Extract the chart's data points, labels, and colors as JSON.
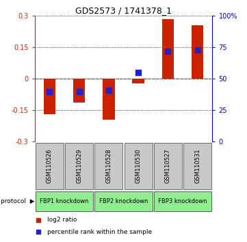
{
  "title": "GDS2573 / 1741378_1",
  "samples": [
    "GSM110526",
    "GSM110529",
    "GSM110528",
    "GSM110530",
    "GSM110527",
    "GSM110531"
  ],
  "log2_ratio": [
    -0.168,
    -0.115,
    -0.195,
    -0.022,
    0.285,
    0.255
  ],
  "percentile_rank": [
    40,
    40,
    41,
    55,
    72,
    73
  ],
  "group_labels": [
    "FBP1 knockdown",
    "FBP2 knockdown",
    "FBP3 knockdown"
  ],
  "group_ranges": [
    [
      0,
      1
    ],
    [
      2,
      3
    ],
    [
      4,
      5
    ]
  ],
  "group_color": "#90EE90",
  "ylim_left": [
    -0.3,
    0.3
  ],
  "ylim_right": [
    0,
    100
  ],
  "yticks_left": [
    -0.3,
    -0.15,
    0,
    0.15,
    0.3
  ],
  "yticks_right": [
    0,
    25,
    50,
    75,
    100
  ],
  "bar_color": "#CC2200",
  "dot_color": "#2222CC",
  "bg_color": "#FFFFFF",
  "sample_box_color": "#C8C8C8",
  "zero_line_color": "#CC2200",
  "left_axis_color": "#CC2200",
  "right_axis_color": "#0000CC",
  "bar_width": 0.4,
  "dot_size": 28,
  "title_fontsize": 9,
  "tick_fontsize": 7,
  "sample_fontsize": 6,
  "group_fontsize": 6,
  "legend_fontsize": 6.5
}
